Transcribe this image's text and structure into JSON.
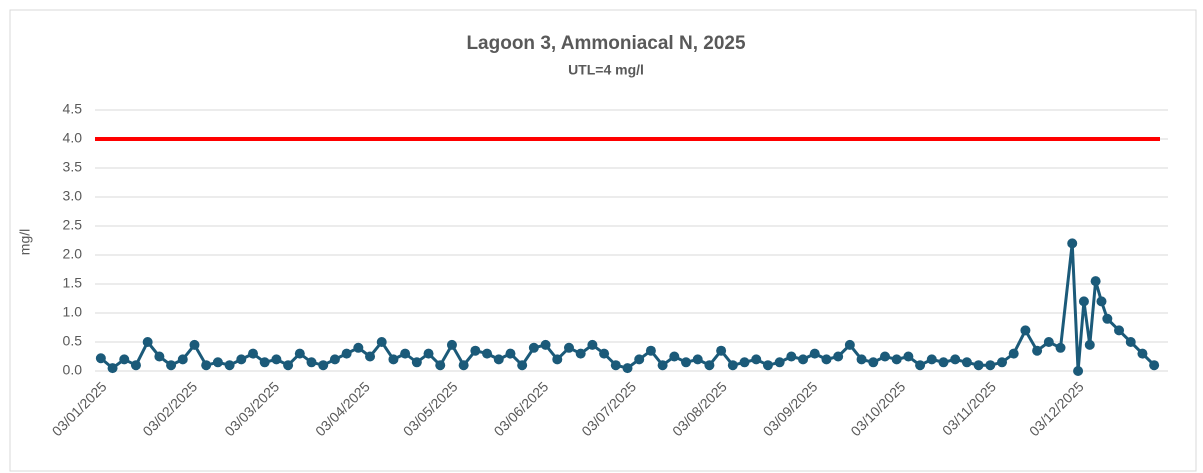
{
  "chart_data": {
    "type": "line",
    "title": "Lagoon 3, Ammoniacal N, 2025",
    "subtitle": "UTL=4 mg/l",
    "y_label": "mg/l",
    "x": [
      "03/01/2025",
      "07/01/2025",
      "11/01/2025",
      "15/01/2025",
      "19/01/2025",
      "23/01/2025",
      "27/01/2025",
      "31/01/2025",
      "04/02/2025",
      "08/02/2025",
      "12/02/2025",
      "16/02/2025",
      "20/02/2025",
      "24/02/2025",
      "28/02/2025",
      "04/03/2025",
      "08/03/2025",
      "12/03/2025",
      "16/03/2025",
      "20/03/2025",
      "24/03/2025",
      "28/03/2025",
      "01/04/2025",
      "05/04/2025",
      "09/04/2025",
      "13/04/2025",
      "17/04/2025",
      "21/04/2025",
      "25/04/2025",
      "29/04/2025",
      "03/05/2025",
      "07/05/2025",
      "11/05/2025",
      "15/05/2025",
      "19/05/2025",
      "23/05/2025",
      "27/05/2025",
      "31/05/2025",
      "04/06/2025",
      "08/06/2025",
      "12/06/2025",
      "16/06/2025",
      "20/06/2025",
      "24/06/2025",
      "28/06/2025",
      "02/07/2025",
      "06/07/2025",
      "10/07/2025",
      "14/07/2025",
      "18/07/2025",
      "22/07/2025",
      "26/07/2025",
      "30/07/2025",
      "03/08/2025",
      "07/08/2025",
      "11/08/2025",
      "15/08/2025",
      "19/08/2025",
      "23/08/2025",
      "27/08/2025",
      "31/08/2025",
      "04/09/2025",
      "08/09/2025",
      "12/09/2025",
      "16/09/2025",
      "20/09/2025",
      "24/09/2025",
      "28/09/2025",
      "02/10/2025",
      "06/10/2025",
      "10/10/2025",
      "14/10/2025",
      "18/10/2025",
      "22/10/2025",
      "26/10/2025",
      "30/10/2025",
      "03/11/2025",
      "07/11/2025",
      "11/11/2025",
      "15/11/2025",
      "19/11/2025",
      "23/11/2025",
      "27/11/2025",
      "01/12/2025",
      "03/12/2025",
      "05/12/2025",
      "07/12/2025",
      "09/12/2025",
      "11/12/2025",
      "13/12/2025",
      "17/12/2025",
      "21/12/2025",
      "25/12/2025",
      "29/12/2025"
    ],
    "series": [
      {
        "name": "Ammoniacal N",
        "color": "#1b5a79",
        "values": [
          0.22,
          0.05,
          0.2,
          0.1,
          0.5,
          0.25,
          0.1,
          0.2,
          0.45,
          0.1,
          0.15,
          0.1,
          0.2,
          0.3,
          0.15,
          0.2,
          0.1,
          0.3,
          0.15,
          0.1,
          0.2,
          0.3,
          0.4,
          0.25,
          0.5,
          0.2,
          0.3,
          0.15,
          0.3,
          0.1,
          0.45,
          0.1,
          0.35,
          0.3,
          0.2,
          0.3,
          0.1,
          0.4,
          0.45,
          0.2,
          0.4,
          0.3,
          0.45,
          0.3,
          0.1,
          0.05,
          0.2,
          0.35,
          0.1,
          0.25,
          0.15,
          0.2,
          0.1,
          0.35,
          0.1,
          0.15,
          0.2,
          0.1,
          0.15,
          0.25,
          0.2,
          0.3,
          0.2,
          0.25,
          0.45,
          0.2,
          0.15,
          0.25,
          0.2,
          0.25,
          0.1,
          0.2,
          0.15,
          0.2,
          0.15,
          0.1,
          0.1,
          0.15,
          0.3,
          0.7,
          0.35,
          0.5,
          0.4,
          2.2,
          0.0,
          1.2,
          0.45,
          1.55,
          1.2,
          0.9,
          0.7,
          0.5,
          0.3,
          0.1
        ]
      }
    ],
    "reference_line": {
      "value": 4,
      "color": "#ff0000"
    },
    "xlim": [
      "01/01/2025",
      "31/12/2025"
    ],
    "xticks": [
      "03/01/2025",
      "03/02/2025",
      "03/03/2025",
      "03/04/2025",
      "03/05/2025",
      "03/06/2025",
      "03/07/2025",
      "03/08/2025",
      "03/09/2025",
      "03/10/2025",
      "03/11/2025",
      "03/12/2025"
    ],
    "ylim": [
      0,
      4.5
    ],
    "yticks": [
      {
        "value": 0,
        "label": "0.0"
      },
      0.5,
      {
        "value": 1,
        "label": "1.0"
      },
      1.5,
      {
        "value": 2,
        "label": "2.0"
      },
      2.5,
      {
        "value": 3,
        "label": "3.0"
      },
      3.5,
      {
        "value": 4,
        "label": "4.0"
      },
      4.5
    ],
    "grid": true
  }
}
